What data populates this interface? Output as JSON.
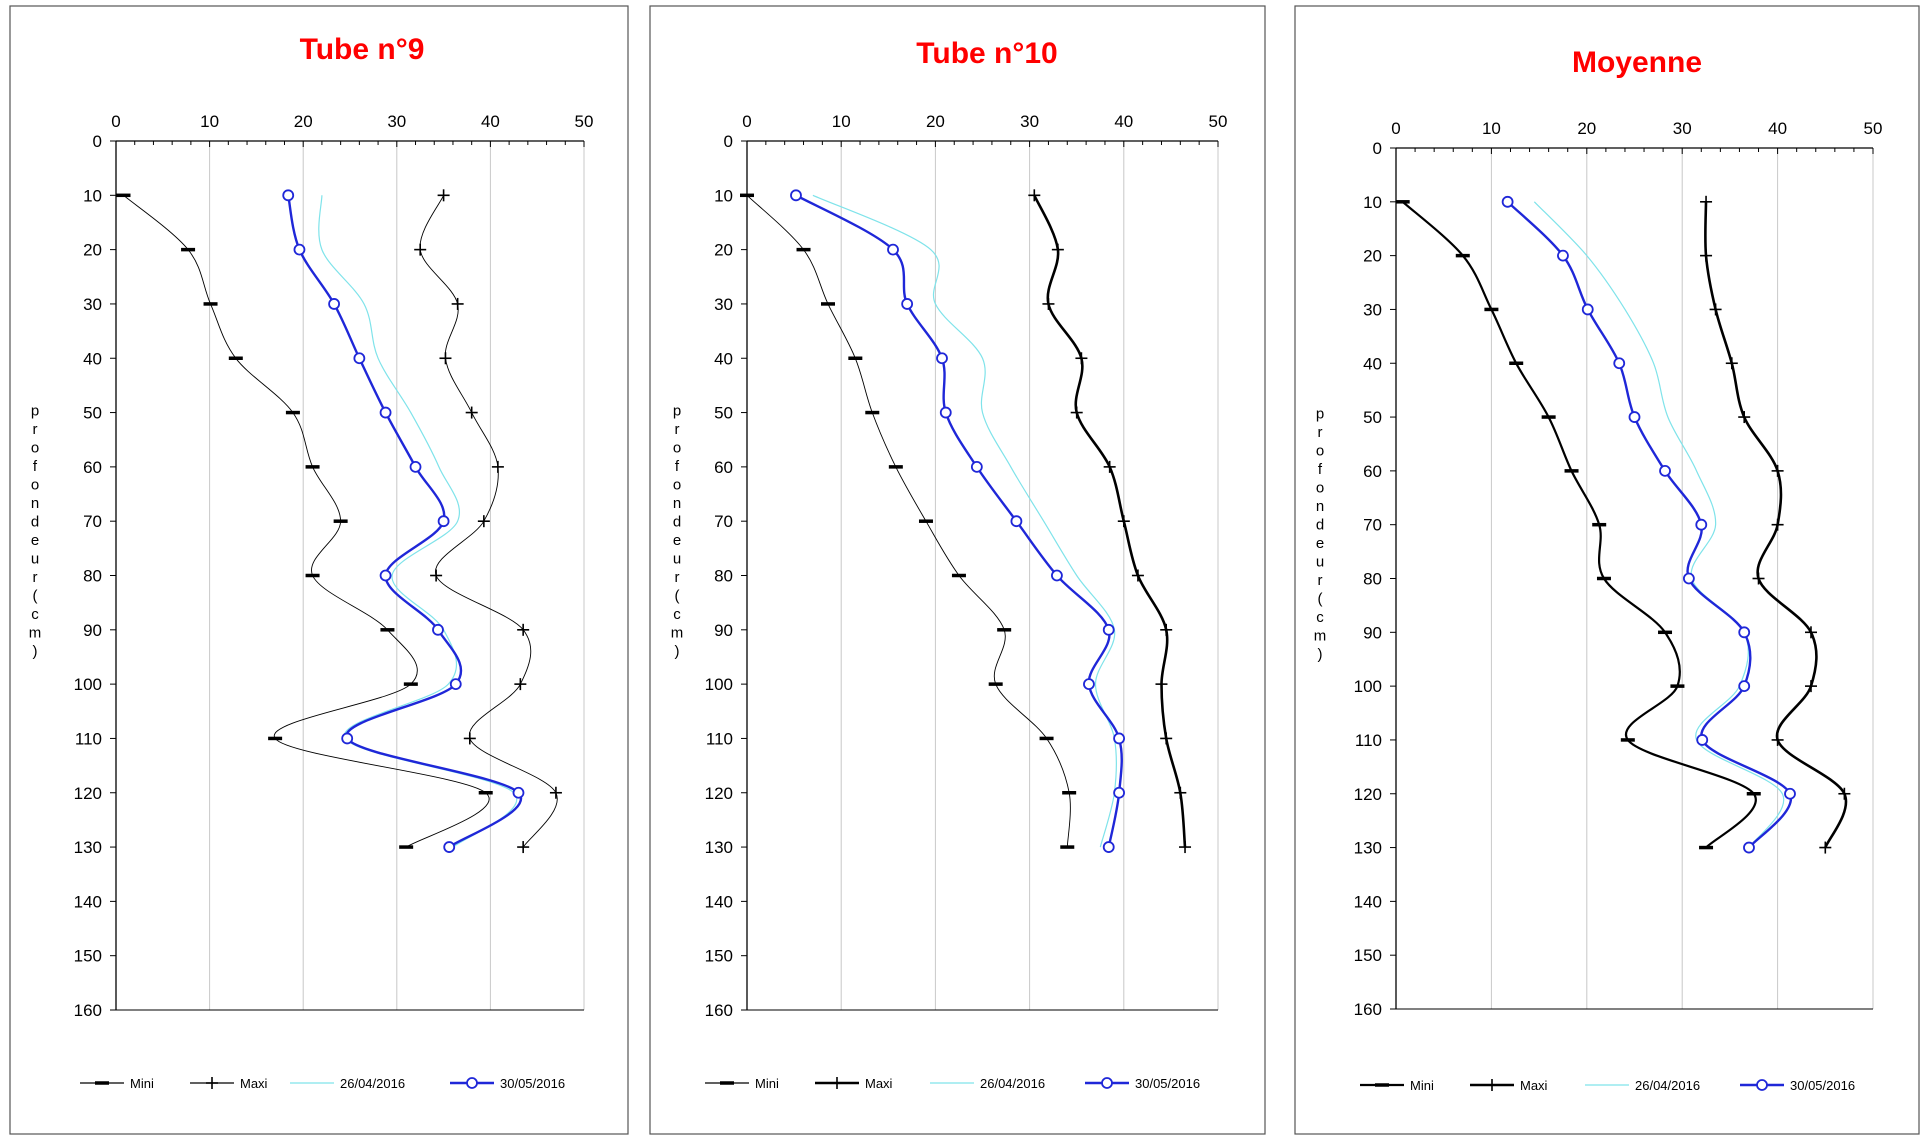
{
  "chart_data": [
    {
      "type": "line",
      "title": "Tube n°9",
      "ylabel": "profondeur (cm)",
      "xlim": [
        0,
        50
      ],
      "ylim": [
        0,
        160
      ],
      "x_ticks": [
        "0",
        "10",
        "20",
        "30",
        "40",
        "50"
      ],
      "y_ticks": [
        "0",
        "10",
        "20",
        "30",
        "40",
        "50",
        "60",
        "70",
        "80",
        "90",
        "100",
        "110",
        "120",
        "130",
        "140",
        "150",
        "160"
      ],
      "depths": [
        10,
        20,
        30,
        40,
        50,
        60,
        70,
        80,
        90,
        100,
        110,
        120,
        130
      ],
      "series": [
        {
          "name": "Mini",
          "values": [
            0.8,
            7.7,
            10.1,
            12.8,
            18.9,
            21.0,
            24.0,
            21.0,
            29.0,
            31.5,
            17.0,
            39.5,
            31.0
          ]
        },
        {
          "name": "Maxi",
          "values": [
            35.0,
            32.5,
            36.5,
            35.2,
            38.0,
            40.8,
            39.3,
            34.2,
            43.5,
            43.2,
            37.8,
            47.0,
            43.5
          ]
        },
        {
          "name": "26/04/2016",
          "values": [
            22.0,
            22.0,
            26.5,
            28.0,
            31.5,
            34.5,
            36.5,
            29.5,
            35.0,
            35.5,
            24.5,
            42.5,
            36.0
          ]
        },
        {
          "name": "30/05/2016",
          "values": [
            18.4,
            19.6,
            23.3,
            26.0,
            28.8,
            32.0,
            35.0,
            28.8,
            34.4,
            36.3,
            24.7,
            43.0,
            35.6
          ]
        }
      ]
    },
    {
      "type": "line",
      "title": "Tube n°10",
      "ylabel": "profondeur (cm)",
      "xlim": [
        0,
        50
      ],
      "ylim": [
        0,
        160
      ],
      "x_ticks": [
        "0",
        "10",
        "20",
        "30",
        "40",
        "50"
      ],
      "y_ticks": [
        "0",
        "10",
        "20",
        "30",
        "40",
        "50",
        "60",
        "70",
        "80",
        "90",
        "100",
        "110",
        "120",
        "130",
        "140",
        "150",
        "160"
      ],
      "depths": [
        10,
        20,
        30,
        40,
        50,
        60,
        70,
        80,
        90,
        100,
        110,
        120,
        130
      ],
      "series": [
        {
          "name": "Mini",
          "values": [
            0.0,
            6.0,
            8.6,
            11.5,
            13.3,
            15.8,
            19.0,
            22.5,
            27.3,
            26.4,
            31.8,
            34.2,
            34.0
          ]
        },
        {
          "name": "Maxi",
          "values": [
            30.5,
            33.0,
            32.0,
            35.5,
            35.0,
            38.5,
            40.0,
            41.5,
            44.5,
            44.0,
            44.5,
            46.0,
            46.5
          ]
        },
        {
          "name": "26/04/2016",
          "values": [
            7.0,
            19.5,
            20.0,
            25.0,
            25.0,
            28.0,
            31.5,
            35.0,
            39.0,
            37.0,
            39.0,
            39.0,
            37.5
          ]
        },
        {
          "name": "30/05/2016",
          "values": [
            5.2,
            15.5,
            17.0,
            20.7,
            21.1,
            24.4,
            28.6,
            32.9,
            38.4,
            36.3,
            39.5,
            39.5,
            38.4
          ]
        }
      ]
    },
    {
      "type": "line",
      "title": "Moyenne",
      "ylabel": "profondeur (cm)",
      "xlim": [
        0,
        50
      ],
      "ylim": [
        0,
        160
      ],
      "x_ticks": [
        "0",
        "10",
        "20",
        "30",
        "40",
        "50"
      ],
      "y_ticks": [
        "0",
        "10",
        "20",
        "30",
        "40",
        "50",
        "60",
        "70",
        "80",
        "90",
        "100",
        "110",
        "120",
        "130",
        "140",
        "150",
        "160"
      ],
      "depths": [
        10,
        20,
        30,
        40,
        50,
        60,
        70,
        80,
        90,
        100,
        110,
        120,
        130
      ],
      "series": [
        {
          "name": "Mini",
          "values": [
            0.7,
            7.0,
            10.0,
            12.6,
            16.0,
            18.4,
            21.3,
            21.8,
            28.2,
            29.5,
            24.3,
            37.5,
            32.5
          ]
        },
        {
          "name": "Maxi",
          "values": [
            32.5,
            32.5,
            33.5,
            35.2,
            36.5,
            40.0,
            40.0,
            38.0,
            43.5,
            43.5,
            40.0,
            47.0,
            45.0
          ]
        },
        {
          "name": "26/04/2016",
          "values": [
            14.5,
            20.0,
            24.0,
            27.0,
            28.5,
            31.5,
            33.5,
            31.0,
            36.5,
            36.0,
            31.5,
            40.5,
            37.0
          ]
        },
        {
          "name": "30/05/2016",
          "values": [
            11.7,
            17.5,
            20.1,
            23.4,
            25.0,
            28.2,
            32.0,
            30.7,
            36.5,
            36.5,
            32.1,
            41.3,
            37.0
          ]
        }
      ]
    }
  ]
}
